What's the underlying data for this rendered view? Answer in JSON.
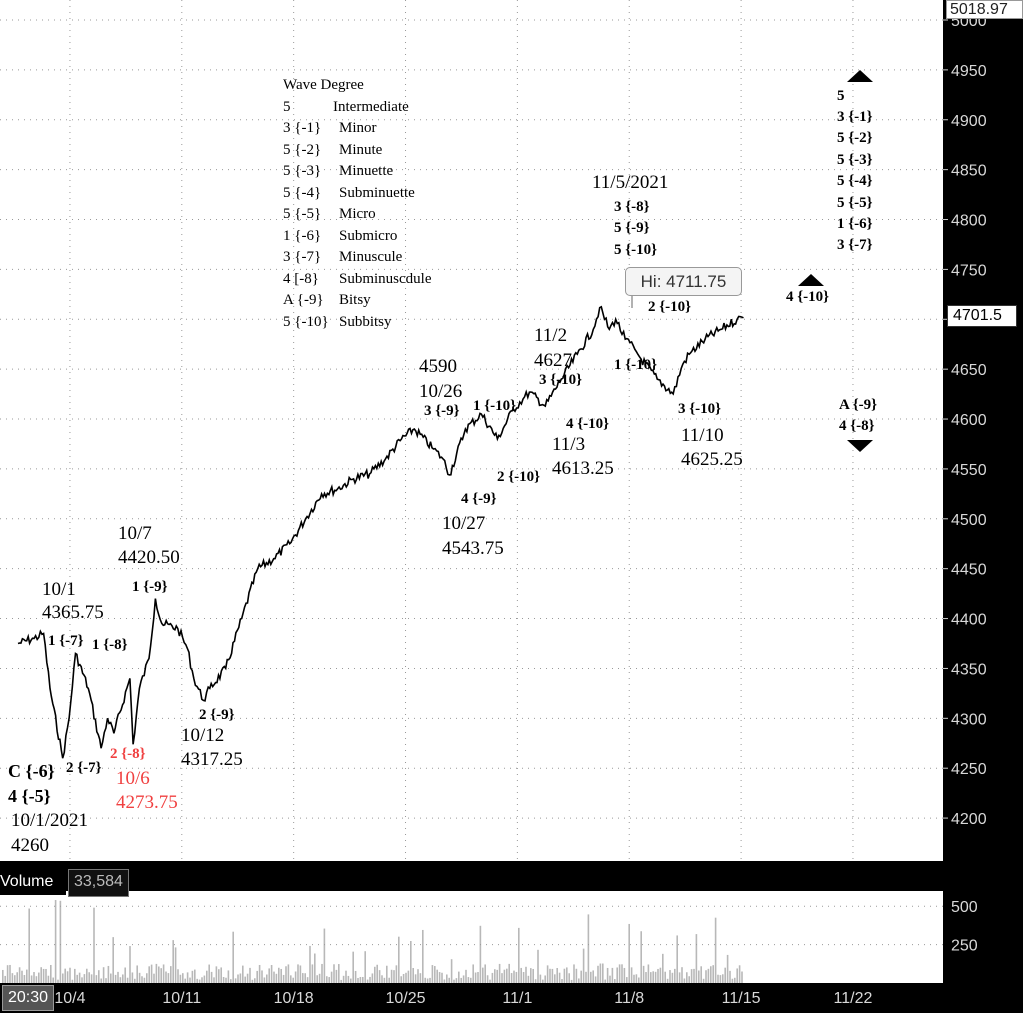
{
  "chart_data": {
    "type": "line",
    "title": "",
    "xlabel": "",
    "ylabel": "",
    "ylim": [
      4155,
      5020
    ],
    "y_ticks": [
      4200,
      4250,
      4300,
      4350,
      4400,
      4450,
      4500,
      4550,
      4600,
      4650,
      4700,
      4750,
      4800,
      4850,
      4900,
      4950,
      5000
    ],
    "x_ticks": [
      {
        "label": "20:30",
        "d": 0
      },
      {
        "label": "10/4",
        "d": 3
      },
      {
        "label": "10/11",
        "d": 10
      },
      {
        "label": "10/18",
        "d": 17
      },
      {
        "label": "10/25",
        "d": 24
      },
      {
        "label": "11/1",
        "d": 31
      },
      {
        "label": "11/8",
        "d": 38
      },
      {
        "label": "11/15",
        "d": 45
      },
      {
        "label": "11/22",
        "d": 52
      }
    ],
    "price_series": {
      "name": "",
      "x_days_since_sep30": [
        0.0,
        1.0,
        1.6,
        2.0,
        2.8,
        3.2,
        3.6,
        4.4,
        5.2,
        5.6,
        6.0,
        7.0,
        7.2,
        7.6,
        8.2,
        8.6,
        9.0,
        10.0,
        10.6,
        11.0,
        11.6,
        12.0,
        13.0,
        14.0,
        15.0,
        16.0,
        17.0,
        18.0,
        19.0,
        20.0,
        21.0,
        22.0,
        23.0,
        24.0,
        24.8,
        26.0,
        26.6,
        27.0,
        28.0,
        29.0,
        30.0,
        31.0,
        31.6,
        32.0,
        33.0,
        34.0,
        35.0,
        36.0,
        36.4,
        37.0,
        37.4,
        38.0,
        38.6,
        39.0,
        40.0,
        41.0,
        41.6,
        42.0,
        43.0,
        44.0,
        45.0,
        45.4
      ],
      "y": [
        4375,
        4380,
        4385,
        4330,
        4260,
        4300,
        4365,
        4330,
        4270,
        4300,
        4285,
        4340,
        4274,
        4330,
        4360,
        4420,
        4395,
        4390,
        4370,
        4340,
        4318,
        4330,
        4350,
        4400,
        4450,
        4460,
        4475,
        4500,
        4525,
        4530,
        4540,
        4545,
        4560,
        4580,
        4590,
        4570,
        4560,
        4544,
        4590,
        4605,
        4580,
        4610,
        4620,
        4627,
        4613,
        4640,
        4665,
        4690,
        4711.75,
        4690,
        4700,
        4680,
        4670,
        4660,
        4640,
        4625.25,
        4655,
        4665,
        4680,
        4690,
        4700,
        4701.5
      ]
    },
    "volume": {
      "label": "Volume",
      "value": "33,584",
      "ylim": [
        0,
        560
      ],
      "y_ticks": [
        250,
        500
      ]
    },
    "price_labels": {
      "top": "5018.97",
      "last": "4701.5",
      "high": "Hi: 4711.75"
    }
  },
  "legend": {
    "title": "Wave Degree",
    "rows": [
      [
        "5",
        "Intermediate"
      ],
      [
        "3 {-1}",
        "Minor"
      ],
      [
        "5 {-2}",
        "Minute"
      ],
      [
        "5 {-3}",
        "Minuette"
      ],
      [
        "5 {-4}",
        "Subminuette"
      ],
      [
        "5 {-5}",
        "Micro"
      ],
      [
        "1 {-6}",
        "Submicro"
      ],
      [
        "3 {-7}",
        "Minuscule"
      ],
      [
        "4 [-8}",
        "Subminuscdule"
      ],
      [
        "A {-9}",
        "Bitsy"
      ],
      [
        "5 {-10}",
        "Subbitsy"
      ]
    ]
  },
  "annotations": {
    "a1": "10/1",
    "a2": "4365.75",
    "a3": "1 {-7}",
    "a4": "1 {-8}",
    "a5": "10/7",
    "a6": "4420.50",
    "a7": "1 {-9}",
    "a8": "C {-6}",
    "a9": "4 {-5}",
    "a10": "10/1/2021",
    "a11": "4260",
    "a12": "2 {-7}",
    "a13": "2 {-8}",
    "a14": "10/6",
    "a15": "4273.75",
    "a16": "2 {-9}",
    "a17": "10/12",
    "a18": "4317.25",
    "a19": "4590",
    "a20": "10/26",
    "a21": "3 {-9}",
    "a22": "1 {-10}",
    "a23": "11/2",
    "a24": "4627",
    "a25": "3 {-10}",
    "a26": "4 {-10}",
    "a27": "11/3",
    "a28": "4613.25",
    "a29": "2 {-10}",
    "a30": "4 {-9}",
    "a31": "10/27",
    "a32": "4543.75",
    "a33": "11/5/2021",
    "a34": "3 {-8}",
    "a35": "5 {-9}",
    "a36": "5 {-10}",
    "a37": "2 {-10}",
    "a38": "1 {-10}",
    "a39": "3 {-10}",
    "a40": "11/10",
    "a41": "4625.25",
    "a42": "4 {-10}",
    "a43": "5",
    "a44": "3 {-1}",
    "a45": "5 {-2}",
    "a46": "5 {-3}",
    "a47": "5 {-4}",
    "a48": "5 {-5}",
    "a49": "1 {-6}",
    "a50": "3 {-7}",
    "a51": "A {-9}",
    "a52": "4 {-8}"
  },
  "colors": {
    "price_line": "#000000",
    "volume_bars": "#b8b8b8",
    "red_annotation": "#f04040",
    "panel_bg": "#000000"
  }
}
